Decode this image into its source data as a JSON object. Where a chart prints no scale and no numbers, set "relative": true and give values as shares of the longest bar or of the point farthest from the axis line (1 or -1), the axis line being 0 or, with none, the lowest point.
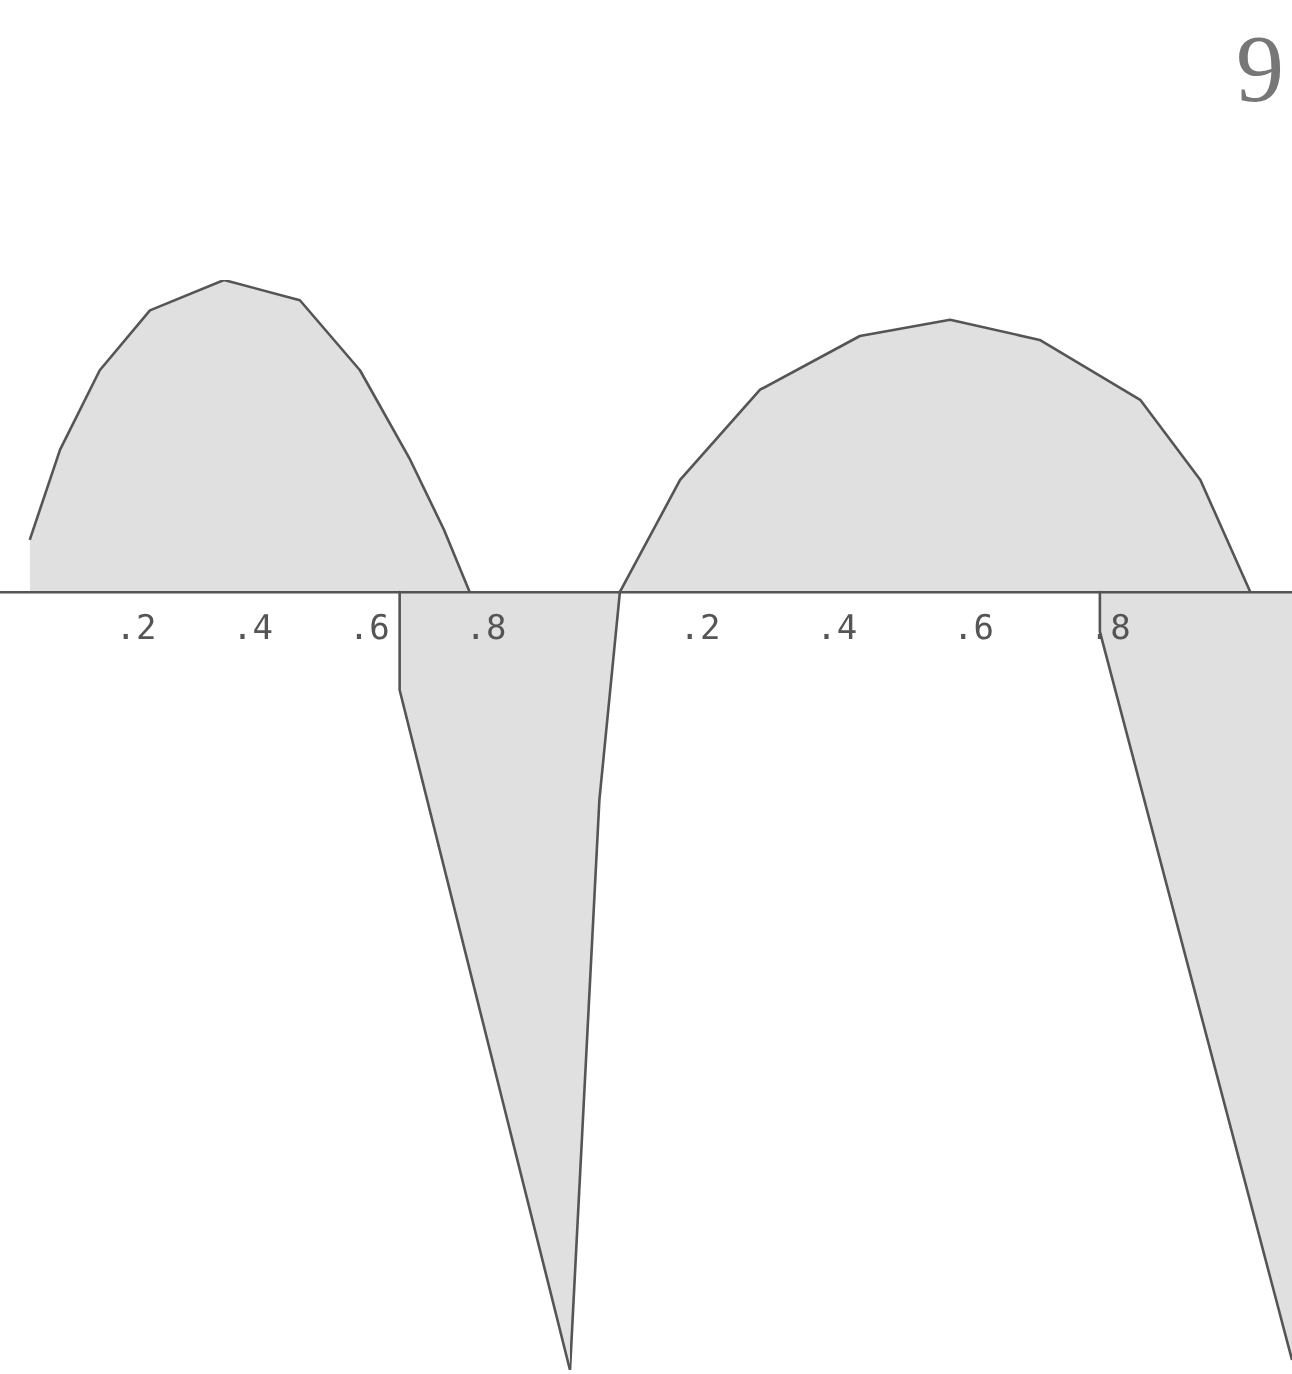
{
  "chart_data": [
    {
      "type": "area",
      "relative": true,
      "xlim": [
        -0.033,
        0.944
      ],
      "xticks": [
        {
          "value": 0.2,
          "label": ".2"
        },
        {
          "value": 0.4,
          "label": ".4"
        },
        {
          "value": 0.6,
          "label": ".6"
        },
        {
          "value": 0.8,
          "label": ".8"
        }
      ],
      "series": [
        {
          "color": "#555555",
          "x": [
            0.018,
            0.07,
            0.138,
            0.224,
            0.351,
            0.481,
            0.584,
            0.67,
            0.728,
            0.772
          ],
          "values": [
            0.067,
            0.183,
            0.285,
            0.362,
            0.401,
            0.375,
            0.285,
            0.17,
            0.08,
            0
          ]
        },
        {
          "color": "#555555",
          "x": [
            0.652,
            0.652,
            0.944
          ],
          "values": [
            0,
            -0.126,
            -1
          ]
        }
      ]
    },
    {
      "type": "area",
      "relative": true,
      "annotations": [
        "9"
      ],
      "xlim": [
        0.01,
        1.066
      ],
      "xticks": [
        {
          "value": 0.2,
          "label": ".2"
        },
        {
          "value": 0.4,
          "label": ".4"
        },
        {
          "value": 0.6,
          "label": ".6"
        },
        {
          "value": 0.8,
          "label": ".8"
        }
      ],
      "series": [
        {
          "color": "#555555",
          "x": [
            0.01,
            0.053,
            0.083
          ],
          "values": [
            -1,
            -0.267,
            0
          ]
        },
        {
          "color": "#555555",
          "x": [
            0.083,
            0.171,
            0.288,
            0.434,
            0.566,
            0.697,
            0.844,
            0.932,
            1.005
          ],
          "values": [
            0,
            0.144,
            0.26,
            0.329,
            0.35,
            0.324,
            0.247,
            0.144,
            0
          ]
        },
        {
          "color": "#555555",
          "x": [
            0.785,
            0.785,
            1.066
          ],
          "values": [
            0,
            -0.051,
            -0.987
          ]
        }
      ]
    }
  ]
}
